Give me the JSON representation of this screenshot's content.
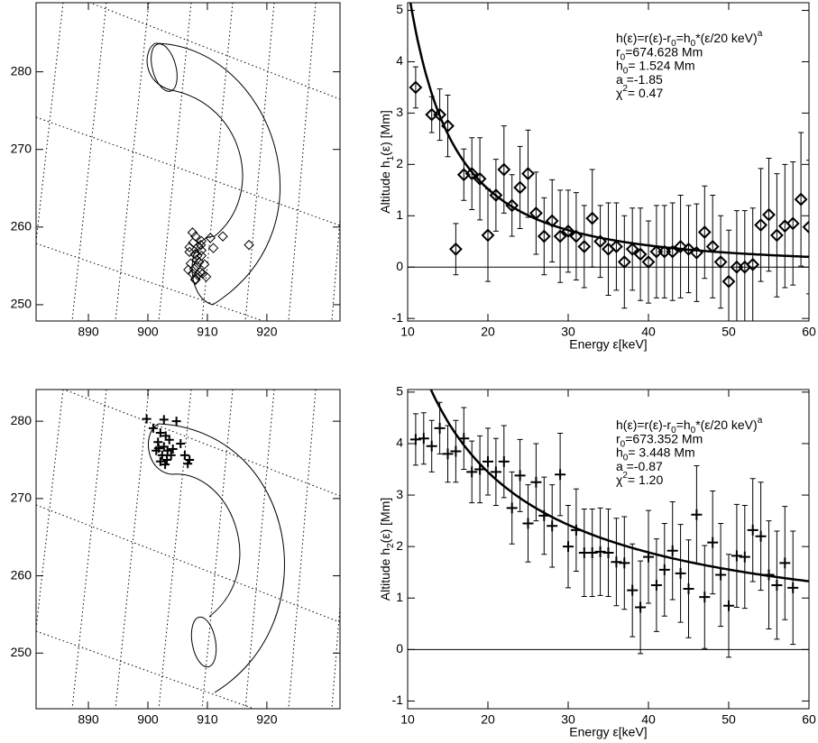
{
  "chart_data": [
    {
      "type": "scatter",
      "marker": "diamond",
      "x": [
        907.5,
        908,
        908.5,
        909,
        907,
        908.2,
        909.5,
        907.8,
        908.8,
        907.2,
        908.4,
        909.2,
        908,
        907.6,
        908.9,
        906.8,
        908.3,
        909.8,
        907.9,
        908.6,
        910.5,
        912.6,
        917,
        911,
        907,
        908,
        909,
        908.2,
        907.5,
        909
      ],
      "values": [
        259.3,
        258.8,
        257.5,
        256.3,
        256.8,
        255.8,
        255.2,
        254.6,
        254.2,
        255.3,
        253.8,
        254,
        253.2,
        258,
        257.7,
        254.5,
        256.3,
        253.6,
        256.5,
        255.5,
        258.6,
        258.8,
        257.7,
        257.3,
        257.4,
        253.3,
        258.2,
        255,
        254,
        257
      ],
      "xlim": [
        881.2,
        932.3
      ],
      "ylim": [
        247.9,
        288.9
      ],
      "xticks": [
        890,
        900,
        910,
        920
      ],
      "yticks": [
        250,
        260,
        270,
        280
      ]
    },
    {
      "type": "errorbar",
      "marker": "diamond",
      "x": [
        11,
        13,
        14,
        15,
        16,
        17,
        18,
        19,
        20,
        21,
        22,
        23,
        24,
        25,
        26,
        27,
        28,
        29,
        30,
        31,
        32,
        33,
        34,
        35,
        36,
        37,
        38,
        39,
        40,
        41,
        42,
        43,
        44,
        45,
        46,
        47,
        48,
        49,
        50,
        51,
        52,
        53,
        54,
        55,
        56,
        57,
        58,
        59,
        60
      ],
      "values": [
        3.5,
        2.97,
        2.97,
        2.75,
        0.35,
        1.8,
        1.82,
        1.72,
        0.62,
        1.4,
        1.9,
        1.2,
        1.55,
        1.82,
        1.05,
        0.6,
        0.9,
        0.6,
        0.7,
        0.6,
        0.4,
        0.95,
        0.5,
        0.35,
        0.4,
        0.1,
        0.35,
        0.25,
        0.1,
        0.3,
        0.3,
        0.3,
        0.4,
        0.35,
        0.28,
        0.68,
        0.4,
        0.1,
        -0.28,
        0,
        0,
        0.05,
        0.82,
        1.02,
        0.62,
        0.8,
        0.85,
        1.32,
        0.78
      ],
      "errors": [
        0.4,
        0.35,
        0.5,
        0.6,
        0.5,
        0.5,
        0.7,
        0.8,
        0.9,
        0.7,
        0.85,
        0.6,
        0.8,
        0.85,
        0.8,
        0.75,
        0.8,
        0.9,
        0.8,
        0.85,
        0.8,
        0.95,
        0.7,
        0.9,
        0.85,
        0.9,
        0.8,
        0.9,
        0.8,
        0.9,
        0.9,
        0.95,
        1.0,
        0.85,
        0.95,
        0.9,
        1.0,
        0.9,
        1.0,
        1.1,
        1.1,
        1.1,
        1.1,
        1.1,
        1.2,
        1.2,
        1.2,
        1.3,
        1.3
      ],
      "fit": {
        "h0": 1.524,
        "a": -1.85,
        "e0": 20
      },
      "xlim": [
        10,
        60
      ],
      "ylim": [
        -1.05,
        5.15
      ],
      "xticks": [
        10,
        20,
        30,
        40,
        50,
        60
      ],
      "yticks": [
        -1,
        0,
        1,
        2,
        3,
        4,
        5
      ],
      "x_label": "Energy  ε[keV]",
      "y_label": [
        {
          "t": "Altitude  h"
        },
        {
          "sub": "1"
        },
        {
          "t": "(ε) [Mm]"
        }
      ],
      "annotation": [
        [
          {
            "t": "h(ε)=r(ε)-r"
          },
          {
            "sub": "0"
          },
          {
            "t": "=h"
          },
          {
            "sub": "0"
          },
          {
            "t": "*(ε/20 keV)"
          },
          {
            "sup": "a"
          }
        ],
        [
          {
            "t": "r"
          },
          {
            "sub": "0"
          },
          {
            "t": "=674.628 Mm"
          }
        ],
        [
          {
            "t": "h"
          },
          {
            "sub": "0"
          },
          {
            "t": "=  1.524 Mm"
          }
        ],
        [
          {
            "t": "a =-1.85"
          }
        ],
        [
          {
            "t": "χ"
          },
          {
            "sup": "2"
          },
          {
            "t": "= 0.47"
          }
        ]
      ]
    },
    {
      "type": "scatter",
      "marker": "cross",
      "x": [
        899.8,
        902.7,
        904.8,
        900.9,
        902.1,
        903.0,
        901.7,
        902.7,
        903.6,
        905.5,
        901.4,
        902.4,
        903.3,
        904.2,
        903.2,
        902.1,
        906.2,
        907.0,
        906.7,
        902.9,
        901.8,
        903.9
      ],
      "values": [
        280.3,
        280.2,
        280.0,
        279.1,
        278.5,
        278.1,
        277.3,
        276.7,
        277.6,
        277.1,
        276.2,
        275.6,
        276.2,
        276.4,
        275.0,
        274.8,
        275.6,
        275.0,
        274.5,
        274.4,
        276.5,
        275.6
      ],
      "xlim": [
        881.2,
        932.3
      ],
      "ylim": [
        242.8,
        284.1
      ],
      "xticks": [
        890,
        900,
        910,
        920
      ],
      "yticks": [
        250,
        260,
        270,
        280
      ]
    },
    {
      "type": "errorbar",
      "marker": "cross",
      "x": [
        11,
        12,
        13,
        14,
        15,
        16,
        17,
        18,
        19,
        20,
        21,
        22,
        23,
        24,
        25,
        26,
        27,
        28,
        29,
        30,
        31,
        32,
        33,
        34,
        35,
        36,
        37,
        38,
        39,
        40,
        41,
        42,
        43,
        44,
        45,
        46,
        47,
        48,
        49,
        50,
        51,
        52,
        53,
        54,
        55,
        56,
        57,
        58
      ],
      "values": [
        4.08,
        4.1,
        3.95,
        4.3,
        3.8,
        3.85,
        4.1,
        3.45,
        3.5,
        3.65,
        3.45,
        3.65,
        2.75,
        3.38,
        2.45,
        3.25,
        2.6,
        2.4,
        3.4,
        2.0,
        2.32,
        1.88,
        1.88,
        1.9,
        1.88,
        1.7,
        1.68,
        1.15,
        0.82,
        1.8,
        1.25,
        1.55,
        1.92,
        1.48,
        1.18,
        2.62,
        1.02,
        2.08,
        1.45,
        0.85,
        1.82,
        1.8,
        2.32,
        2.2,
        1.45,
        1.25,
        1.68,
        1.2
      ],
      "errors": [
        0.5,
        0.5,
        0.5,
        0.5,
        0.55,
        0.6,
        0.6,
        0.6,
        0.65,
        0.65,
        0.65,
        0.7,
        0.7,
        0.7,
        0.75,
        0.75,
        0.75,
        0.8,
        0.8,
        0.8,
        0.8,
        0.85,
        0.85,
        0.85,
        0.85,
        0.85,
        0.9,
        0.9,
        0.9,
        0.9,
        0.9,
        0.9,
        0.95,
        0.95,
        0.95,
        0.95,
        1.0,
        1.0,
        1.0,
        1.0,
        1.0,
        1.0,
        1.0,
        1.05,
        1.05,
        1.05,
        1.1,
        1.1
      ],
      "fit": {
        "h0": 3.448,
        "a": -0.87,
        "e0": 20
      },
      "xlim": [
        10,
        60
      ],
      "ylim": [
        -1.15,
        5.05
      ],
      "xticks": [
        10,
        20,
        30,
        40,
        50,
        60
      ],
      "yticks": [
        -1,
        0,
        1,
        2,
        3,
        4,
        5
      ],
      "x_label": "Energy  ε[keV]",
      "y_label": [
        {
          "t": "Altitude  h"
        },
        {
          "sub": "2"
        },
        {
          "t": "(ε) [Mm]"
        }
      ],
      "annotation": [
        [
          {
            "t": "h(ε)=r(ε)-r"
          },
          {
            "sub": "0"
          },
          {
            "t": "=h"
          },
          {
            "sub": "0"
          },
          {
            "t": "*(ε/20 keV)"
          },
          {
            "sup": "a"
          }
        ],
        [
          {
            "t": "r"
          },
          {
            "sub": "0"
          },
          {
            "t": "=673.352 Mm"
          }
        ],
        [
          {
            "t": "h"
          },
          {
            "sub": "0"
          },
          {
            "t": "=  3.448 Mm"
          }
        ],
        [
          {
            "t": "a =-0.87"
          }
        ],
        [
          {
            "t": "χ"
          },
          {
            "sup": "2"
          },
          {
            "t": "= 1.20"
          }
        ]
      ]
    }
  ]
}
